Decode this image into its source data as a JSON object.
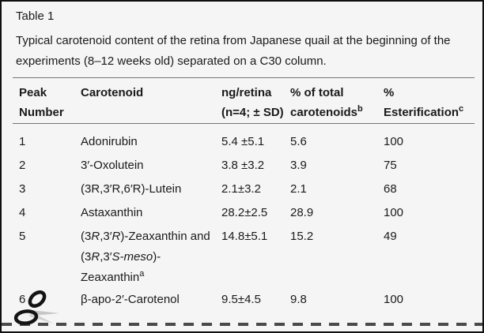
{
  "frame": {
    "background": "#f5f5f5",
    "border_color": "#0f0f0f",
    "rule_color": "#747474",
    "dash_color": "#4a4a4a",
    "text_color": "#1a1a1a"
  },
  "table_label": "Table 1",
  "caption": "Typical carotenoid content of the retina from Japanese quail at the beginning of the experiments (8–12 weeks old) separated on a C30 column.",
  "header": {
    "peak": [
      {
        "t": "Peak Number"
      }
    ],
    "carotenoid": [
      {
        "t": "Carotenoid"
      }
    ],
    "ng": [
      {
        "t": "ng/retina (n=4; ± SD)"
      }
    ],
    "pct_total": [
      {
        "t": "% of total carotenoids"
      },
      {
        "t": "b",
        "sup": true
      }
    ],
    "ester": [
      {
        "t": "% Esterification"
      },
      {
        "t": "c",
        "sup": true
      }
    ]
  },
  "rows": [
    {
      "peak": "1",
      "carotenoid": [
        {
          "t": "Adonirubin"
        }
      ],
      "ng": "5.4 ±5.1",
      "pct_total": "5.6",
      "ester": "100"
    },
    {
      "peak": "2",
      "carotenoid": [
        {
          "t": "3′-Oxolutein"
        }
      ],
      "ng": "3.8 ±3.2",
      "pct_total": "3.9",
      "ester": "75"
    },
    {
      "peak": "3",
      "carotenoid": [
        {
          "t": "(3R,3′R,6′R)-Lutein"
        }
      ],
      "ng": "2.1±3.2",
      "pct_total": "2.1",
      "ester": "68"
    },
    {
      "peak": "4",
      "carotenoid": [
        {
          "t": "Astaxanthin"
        }
      ],
      "ng": "28.2±2.5",
      "pct_total": "28.9",
      "ester": "100"
    },
    {
      "peak": "5",
      "carotenoid": [
        {
          "t": "(3"
        },
        {
          "t": "R",
          "i": true
        },
        {
          "t": ",3′"
        },
        {
          "t": "R",
          "i": true
        },
        {
          "t": ")-Zeaxanthin and (3"
        },
        {
          "t": "R",
          "i": true
        },
        {
          "t": ",3′"
        },
        {
          "t": "S-meso",
          "i": true
        },
        {
          "t": ")-Zeaxanthin"
        },
        {
          "t": "a",
          "sup": true
        }
      ],
      "ng": "14.8±5.1",
      "pct_total": "15.2",
      "ester": "49"
    },
    {
      "peak": "6",
      "carotenoid": [
        {
          "t": "β-apo-2′-Carotenol"
        }
      ],
      "ng": "9.5±4.5",
      "pct_total": "9.8",
      "ester": "100"
    }
  ],
  "icons": {
    "scissors": "cut-here-scissors"
  }
}
